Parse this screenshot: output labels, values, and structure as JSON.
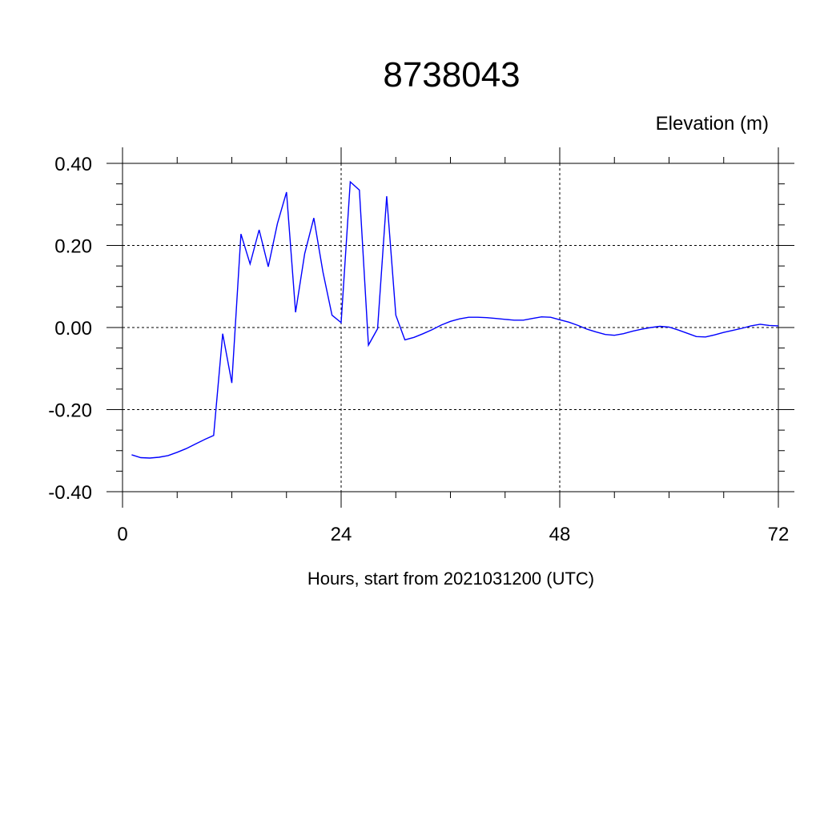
{
  "chart_data": {
    "type": "line",
    "title": "8738043",
    "ylabel": "Elevation (m)",
    "xlabel": "Hours, start from 2021031200 (UTC)",
    "xlim": [
      0,
      72
    ],
    "ylim": [
      -0.4,
      0.4
    ],
    "x_ticks": [
      0,
      24,
      48,
      72
    ],
    "x_tick_labels": [
      "0",
      "24",
      "48",
      "72"
    ],
    "y_ticks": [
      -0.4,
      -0.2,
      0.0,
      0.2,
      0.4
    ],
    "y_tick_labels": [
      "-0.40",
      "-0.20",
      "0.00",
      "0.20",
      "0.40"
    ],
    "grid": true,
    "grid_style": "dashed",
    "line_color": "#0000ff",
    "series": [
      {
        "x": [
          1,
          2,
          3,
          4,
          5,
          6,
          7,
          8,
          9,
          10,
          11,
          12,
          13,
          14,
          15,
          16,
          17,
          18,
          19,
          20,
          21,
          22,
          23,
          24,
          25,
          26,
          27,
          28,
          29,
          30,
          31,
          32,
          33,
          34,
          35,
          36,
          37,
          38,
          39,
          40,
          41,
          42,
          43,
          44,
          45,
          46,
          47,
          48,
          49,
          50,
          51,
          52,
          53,
          54,
          55,
          56,
          57,
          58,
          59,
          60,
          61,
          62,
          63,
          64,
          65,
          66,
          67,
          68,
          69,
          70,
          71,
          72
        ],
        "values": [
          -0.31,
          -0.317,
          -0.318,
          -0.316,
          -0.312,
          -0.304,
          -0.295,
          -0.284,
          -0.273,
          -0.263,
          -0.015,
          -0.135,
          0.228,
          0.155,
          0.238,
          0.148,
          0.253,
          0.33,
          0.037,
          0.18,
          0.267,
          0.135,
          0.03,
          0.012,
          0.355,
          0.335,
          -0.043,
          -0.003,
          0.32,
          0.03,
          -0.03,
          -0.024,
          -0.015,
          -0.005,
          0.006,
          0.015,
          0.021,
          0.025,
          0.025,
          0.024,
          0.022,
          0.02,
          0.018,
          0.018,
          0.022,
          0.026,
          0.025,
          0.019,
          0.013,
          0.005,
          -0.004,
          -0.011,
          -0.017,
          -0.019,
          -0.015,
          -0.009,
          -0.004,
          0.0,
          0.003,
          0.001,
          -0.006,
          -0.014,
          -0.022,
          -0.023,
          -0.018,
          -0.012,
          -0.007,
          -0.002,
          0.004,
          0.008,
          0.005,
          0.004
        ]
      }
    ]
  }
}
